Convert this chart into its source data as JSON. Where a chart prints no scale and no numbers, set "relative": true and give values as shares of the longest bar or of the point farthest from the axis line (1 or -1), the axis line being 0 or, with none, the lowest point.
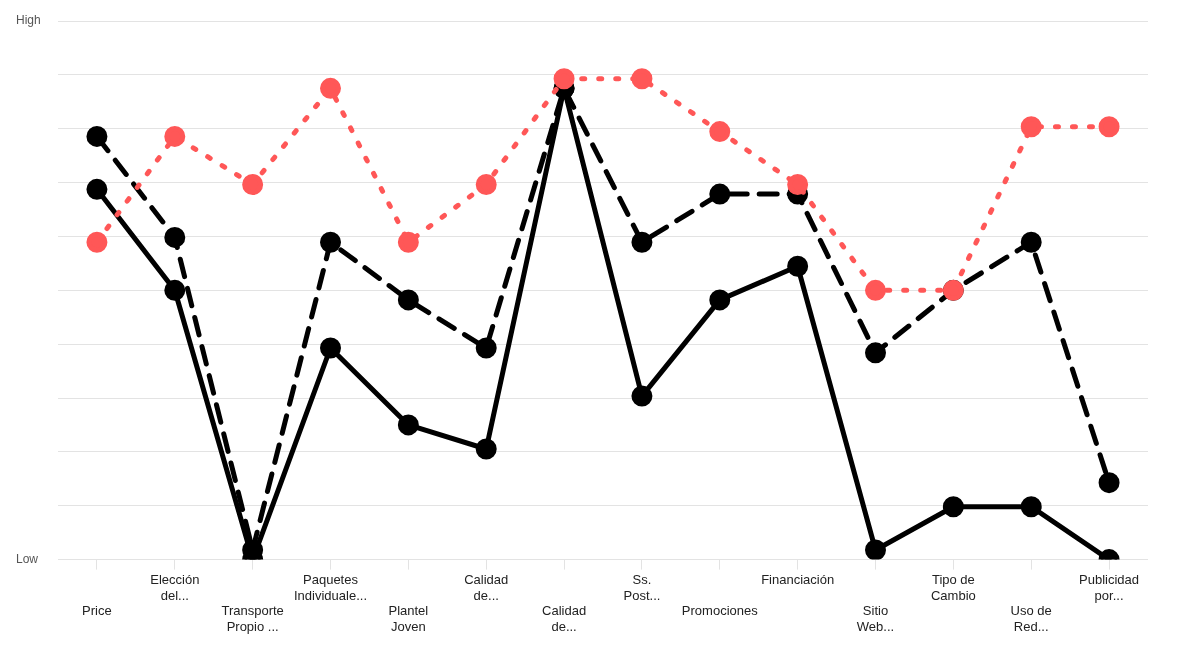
{
  "chart_data": {
    "type": "line",
    "relative": true,
    "grid": "y",
    "legend": false,
    "marker": "circle",
    "annotations": [
      "High",
      "Low"
    ],
    "categories": [
      "Price",
      "Elección\ndel...",
      "Transporte\nPropio ...",
      "Paquetes\nIndividuale...",
      "Plantel\nJoven",
      "Calidad\nde...",
      "Calidad\nde...",
      "Ss.\nPost...",
      "Promociones",
      "Financiación",
      "Sitio\nWeb...",
      "Tipo de\nCambio",
      "Uso de\nRed...",
      "Publicidad\npor..."
    ],
    "series": [
      {
        "color": "#ff5757",
        "line_style": "dotted",
        "values": [
          0.66,
          0.88,
          0.78,
          0.98,
          0.66,
          0.78,
          1.0,
          1.0,
          0.89,
          0.78,
          0.56,
          0.56,
          0.9,
          0.9
        ]
      },
      {
        "color": "#000000",
        "line_style": "dashed",
        "values": [
          0.88,
          0.67,
          0.02,
          0.66,
          0.54,
          0.44,
          0.98,
          0.66,
          0.76,
          0.76,
          0.43,
          0.56,
          0.66,
          0.16
        ]
      },
      {
        "color": "#000000",
        "line_style": "solid",
        "values": [
          0.77,
          0.56,
          0,
          0.44,
          0.28,
          0.23,
          0.98,
          0.34,
          0.54,
          0.61,
          0.02,
          0.11,
          0.11,
          0
        ]
      }
    ]
  }
}
